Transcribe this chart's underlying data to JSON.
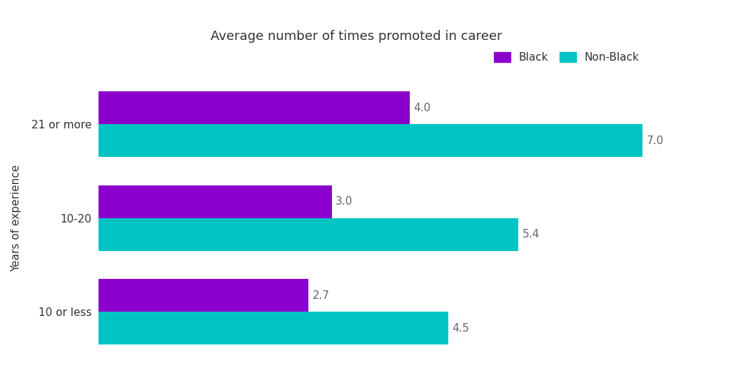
{
  "categories": [
    "10 or less",
    "10-20",
    "21 or more"
  ],
  "black_values": [
    2.7,
    3.0,
    4.0
  ],
  "nonblack_values": [
    4.5,
    5.4,
    7.0
  ],
  "black_color": "#8B00CC",
  "nonblack_color": "#00C4C4",
  "title": "Average number of times promoted in career",
  "ylabel": "Years of experience",
  "black_label": "Black",
  "nonblack_label": "Non-Black",
  "xlim": [
    0,
    8
  ],
  "background_color": "#ffffff",
  "bar_height": 0.35,
  "title_fontsize": 13,
  "label_fontsize": 11,
  "tick_fontsize": 11,
  "value_fontsize": 11,
  "value_color": "#666666"
}
